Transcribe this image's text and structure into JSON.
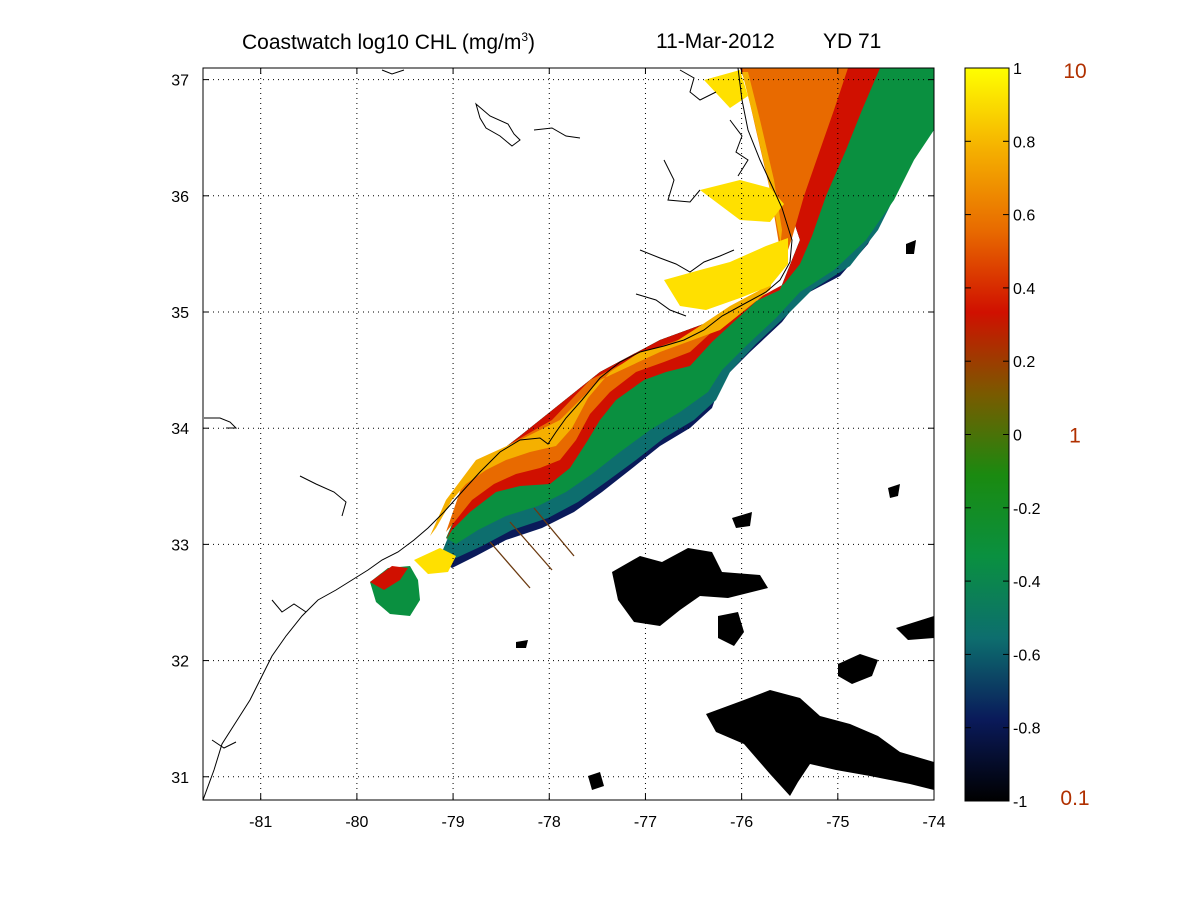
{
  "title": {
    "prefix": "Coastwatch  log10  CHL (mg/m",
    "superscript": "3",
    "suffix": ")",
    "date": "11-Mar-2012",
    "yearday": "YD 71"
  },
  "map": {
    "x_axis": {
      "ticks": [
        "-81",
        "-80",
        "-79",
        "-78",
        "-77",
        "-76",
        "-75",
        "-74"
      ],
      "range": [
        -81.6,
        -74
      ]
    },
    "y_axis": {
      "ticks": [
        "37",
        "36",
        "35",
        "34",
        "33",
        "32",
        "31"
      ],
      "range": [
        30.8,
        37.1
      ]
    },
    "grid": "dotted",
    "background_color": "#ffffff",
    "land_mask_color": "#000000"
  },
  "colorbar": {
    "ticks": [
      "1",
      "0.8",
      "0.6",
      "0.4",
      "0.2",
      "0",
      "-0.2",
      "-0.4",
      "-0.6",
      "-0.8",
      "-1"
    ],
    "range": [
      -1,
      1
    ],
    "stops": [
      "#000000",
      "#0a1a5a",
      "#0d6e6e",
      "#0a9040",
      "#1a8a10",
      "#7a5a00",
      "#d01000",
      "#e86a00",
      "#f5b000",
      "#ffff00"
    ],
    "linear_labels": [
      "10",
      "1",
      "0.1"
    ],
    "linear_label_color": "#b03000"
  }
}
